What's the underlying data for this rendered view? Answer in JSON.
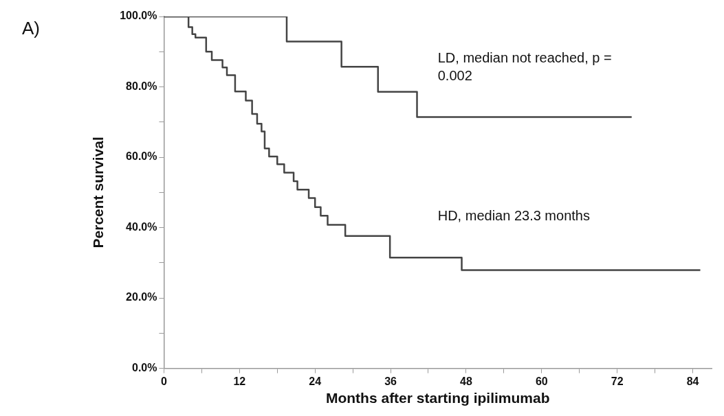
{
  "chart_data": {
    "type": "step",
    "xlabel": "Months after starting ipilimumab",
    "ylabel": "Percent survival",
    "xlim": [
      0,
      87
    ],
    "ylim": [
      0,
      100
    ],
    "xticks": [
      0,
      {
        "value": 6,
        "label": null
      },
      12,
      {
        "value": 18,
        "label": null
      },
      24,
      {
        "value": 30,
        "label": null
      },
      36,
      {
        "value": 42,
        "label": null
      },
      48,
      {
        "value": 54,
        "label": null
      },
      60,
      {
        "value": 66,
        "label": null
      },
      72,
      {
        "value": 78,
        "label": null
      },
      84
    ],
    "yticks": [
      {
        "value": 0,
        "label": "0.0%"
      },
      {
        "value": 10,
        "label": null
      },
      {
        "value": 20,
        "label": "20.0%"
      },
      {
        "value": 30,
        "label": null
      },
      {
        "value": 40,
        "label": "40.0%"
      },
      {
        "value": 50,
        "label": null
      },
      {
        "value": 60,
        "label": "60.0%"
      },
      {
        "value": 70,
        "label": null
      },
      {
        "value": 80,
        "label": "80.0%"
      },
      {
        "value": 90,
        "label": null
      },
      {
        "value": 100,
        "label": "100.0%"
      }
    ],
    "grid": false,
    "legend": false,
    "marker": "none",
    "line_style": "solid",
    "series": [
      {
        "color": "#444444",
        "x": [
          0,
          19.5,
          28.2,
          34.0,
          40.2,
          74.3
        ],
        "values": [
          100,
          92.9,
          85.7,
          78.6,
          71.4,
          71.4
        ]
      },
      {
        "color": "#444444",
        "x": [
          0,
          3.9,
          4.5,
          5.0,
          6.7,
          7.6,
          9.3,
          10.0,
          11.3,
          13.0,
          14.0,
          14.8,
          15.5,
          16.0,
          16.7,
          18.0,
          19.1,
          20.6,
          21.2,
          23.0,
          24.0,
          24.9,
          26.0,
          28.8,
          35.9,
          47.3,
          85.2
        ],
        "values": [
          100,
          97,
          95,
          94,
          90,
          87.6,
          85.5,
          83.3,
          78.7,
          76.1,
          72.3,
          69.5,
          67.3,
          62.5,
          60.2,
          58.0,
          55.6,
          53.2,
          50.8,
          48.4,
          45.8,
          43.4,
          40.8,
          37.6,
          31.5,
          27.9,
          27.9
        ]
      }
    ],
    "annotations": [
      "A)",
      "LD, median not reached, p = 0.002",
      "HD, median 23.3 months"
    ]
  }
}
